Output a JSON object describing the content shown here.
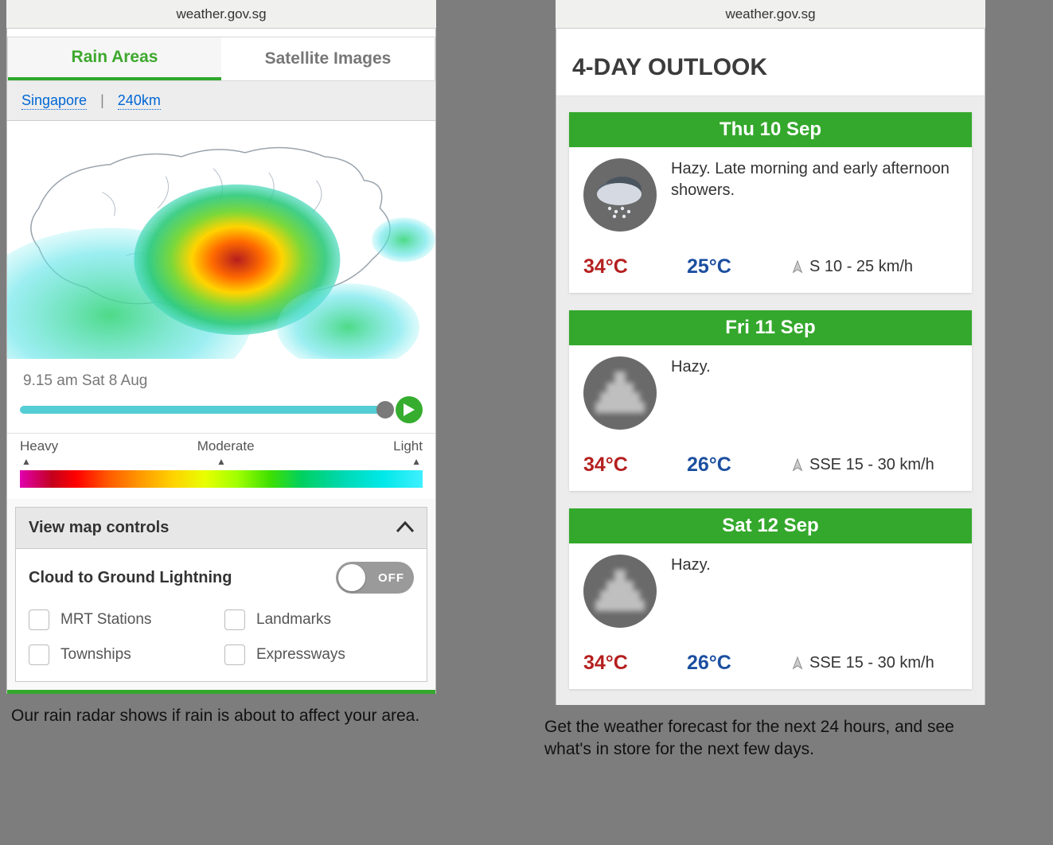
{
  "colors": {
    "brand_green": "#34a82c",
    "tab_active_text": "#3ea82e",
    "link_blue": "#0066d4",
    "page_bg": "#7d7d7d",
    "hi_temp": "#b52020",
    "lo_temp": "#1c4fa0",
    "toggle_bg": "#9a9a9a",
    "icon_bg": "#6a6a6a"
  },
  "left": {
    "url": "weather.gov.sg",
    "tabs": {
      "active": "Rain Areas",
      "inactive": "Satellite Images"
    },
    "subnav": {
      "link1": "Singapore",
      "sep": "|",
      "link2": "240km"
    },
    "timeline": {
      "timestamp": "9.15 am Sat 8 Aug",
      "track_color": "#55cdd4",
      "thumb_color": "#7a7a7a",
      "play_bg": "#36ad2f",
      "progress_pct": 100
    },
    "legend": {
      "labels": [
        "Heavy",
        "Moderate",
        "Light"
      ],
      "gradient_stops": [
        "#e000b0",
        "#c4001e",
        "#ff0000",
        "#ff5a00",
        "#ff9a00",
        "#ffd200",
        "#e8ff00",
        "#a0ff00",
        "#40e000",
        "#00d060",
        "#00d8b0",
        "#00e8e8",
        "#40f0ff"
      ]
    },
    "controls": {
      "header": "View map controls",
      "lightning_label": "Cloud to Ground Lightning",
      "toggle_state": "OFF",
      "options": [
        "MRT Stations",
        "Landmarks",
        "Townships",
        "Expressways"
      ]
    },
    "caption": "Our rain radar shows if rain is about to affect your area."
  },
  "right": {
    "url": "weather.gov.sg",
    "title": "4-DAY OUTLOOK",
    "days": [
      {
        "date": "Thu 10 Sep",
        "icon": "rain",
        "forecast": "Hazy. Late morning and early afternoon showers.",
        "hi": "34°C",
        "lo": "25°C",
        "wind": "S 10 - 25 km/h"
      },
      {
        "date": "Fri 11 Sep",
        "icon": "haze",
        "forecast": "Hazy.",
        "hi": "34°C",
        "lo": "26°C",
        "wind": "SSE 15 - 30 km/h"
      },
      {
        "date": "Sat 12 Sep",
        "icon": "haze",
        "forecast": "Hazy.",
        "hi": "34°C",
        "lo": "26°C",
        "wind": "SSE 15 - 30 km/h"
      }
    ],
    "caption": "Get the weather forecast for the next 24 hours, and see what's in store for the next few days."
  }
}
